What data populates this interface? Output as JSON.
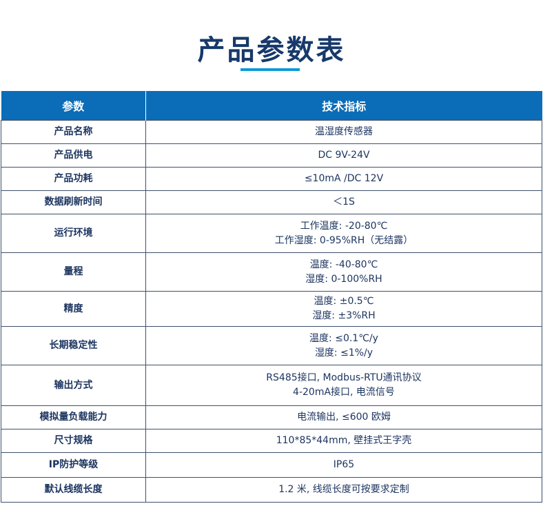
{
  "title": "产品参数表",
  "table": {
    "headers": [
      "参数",
      "技术指标"
    ],
    "rows": [
      {
        "param": "产品名称",
        "spec": [
          "温湿度传感器"
        ]
      },
      {
        "param": "产品供电",
        "spec": [
          "DC 9V-24V"
        ]
      },
      {
        "param": "产品功耗",
        "spec": [
          "≤10mA /DC 12V"
        ]
      },
      {
        "param": "数据刷新时间",
        "spec": [
          "＜1S"
        ]
      },
      {
        "param": "运行环境",
        "spec": [
          "工作温度: -20-80℃",
          "工作湿度: 0-95%RH（无结露）"
        ]
      },
      {
        "param": "量程",
        "spec": [
          "温度: -40-80℃",
          "湿度: 0-100%RH"
        ]
      },
      {
        "param": "精度",
        "spec": [
          "温度: ±0.5℃",
          "湿度: ±3%RH"
        ]
      },
      {
        "param": "长期稳定性",
        "spec": [
          "温度: ≤0.1℃/y",
          "湿度: ≤1%/y"
        ]
      },
      {
        "param": "输出方式",
        "spec": [
          "RS485接口, Modbus-RTU通讯协议",
          "4-20mA接口, 电流信号"
        ]
      },
      {
        "param": "模拟量负载能力",
        "spec": [
          "电流输出, ≤600 欧姆"
        ]
      },
      {
        "param": "尺寸规格",
        "spec": [
          "110*85*44mm, 壁挂式王字壳"
        ]
      },
      {
        "param": "IP防护等级",
        "spec": [
          "IP65"
        ]
      },
      {
        "param": "默认线缆长度",
        "spec": [
          "1.2 米, 线缆长度可按要求定制"
        ]
      }
    ]
  }
}
